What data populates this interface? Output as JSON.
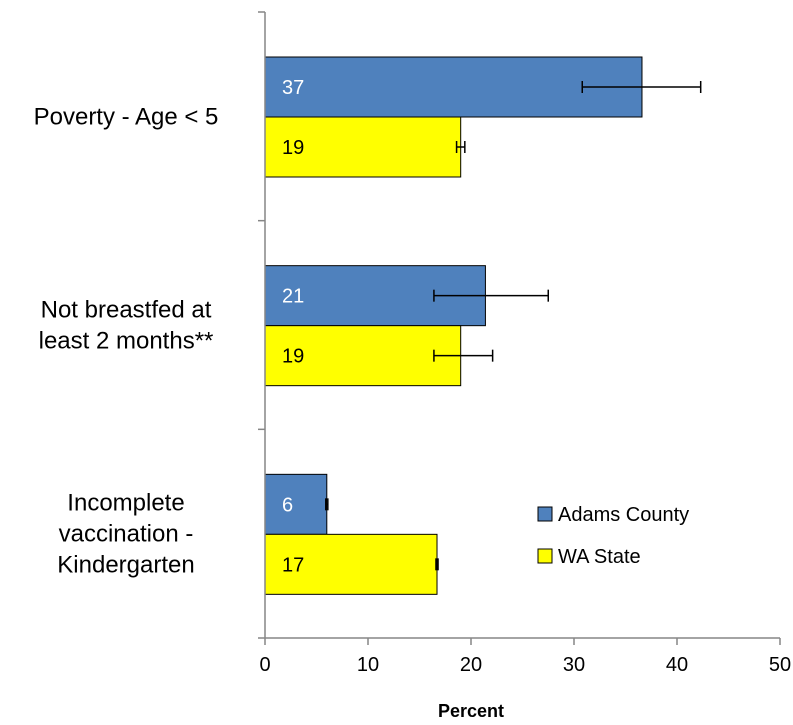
{
  "chart_data": {
    "type": "bar",
    "orientation": "horizontal",
    "categories": [
      [
        "Poverty - Age < 5"
      ],
      [
        "Not breastfed at",
        "least 2 months**"
      ],
      [
        "Incomplete",
        "vaccination -",
        "Kindergarten"
      ]
    ],
    "series": [
      {
        "name": "Adams County",
        "color": "#4F81BD",
        "label_color": "#FFFFFF",
        "values": [
          36.6,
          21.4,
          6.0
        ],
        "labels": [
          "37",
          "21",
          "6"
        ],
        "error_low": [
          30.8,
          16.4,
          5.9
        ],
        "error_high": [
          42.3,
          27.5,
          6.1
        ]
      },
      {
        "name": "WA State",
        "color": "#FFFF00",
        "label_color": "#000000",
        "values": [
          19.0,
          19.0,
          16.7
        ],
        "labels": [
          "19",
          "19",
          "17"
        ],
        "error_low": [
          18.6,
          16.4,
          16.6
        ],
        "error_high": [
          19.4,
          22.1,
          16.8
        ]
      }
    ],
    "xlabel": "Percent",
    "xlim": [
      0,
      50
    ],
    "xticks": [
      "0",
      "10",
      "20",
      "30",
      "40",
      "50"
    ],
    "grid": false,
    "legend_position": "bottom-right"
  }
}
